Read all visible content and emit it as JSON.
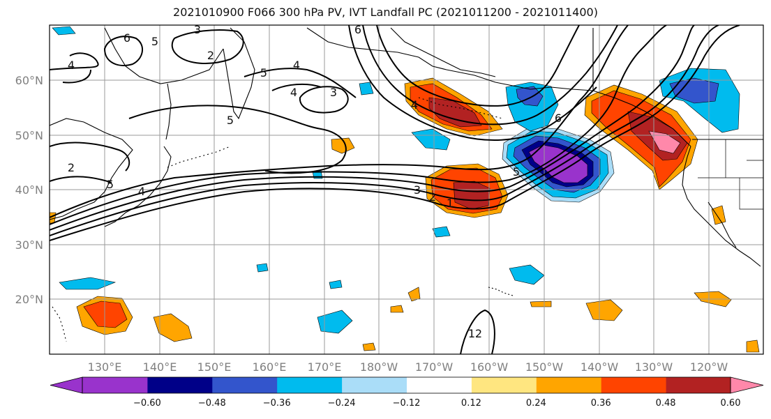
{
  "title": "2021010900 F066 300 hPa PV, IVT Landfall PC (2021011200 - 2021011400)",
  "lat_ticks": [
    "20°N",
    "30°N",
    "40°N",
    "50°N",
    "60°N"
  ],
  "lon_ticks": [
    "130°E",
    "140°E",
    "150°E",
    "160°E",
    "170°E",
    "180°W",
    "170°W",
    "160°W",
    "150°W",
    "140°W",
    "130°W",
    "120°W"
  ],
  "colorbar": {
    "colors": [
      "#9933cc",
      "#000088",
      "#3355cc",
      "#00bbee",
      "#aaddf8",
      "#ffffff",
      "#ffe680",
      "#ffa500",
      "#ff4400",
      "#b22222",
      "#ff88aa"
    ],
    "labels": [
      "−0.60",
      "−0.48",
      "−0.36",
      "−0.24",
      "−0.12",
      "0.12",
      "0.24",
      "0.36",
      "0.48",
      "0.60"
    ]
  },
  "contour_labels": [
    "6",
    "3",
    "2",
    "4",
    "5",
    "4",
    "5",
    "3",
    "4",
    "5",
    "6",
    "2",
    "5",
    "4",
    "3",
    "2",
    "1",
    "5",
    "6",
    "4",
    "1",
    "2"
  ],
  "colors": {
    "contour": "#000000",
    "grid": "#9a9a9a",
    "coast": "#000000"
  }
}
